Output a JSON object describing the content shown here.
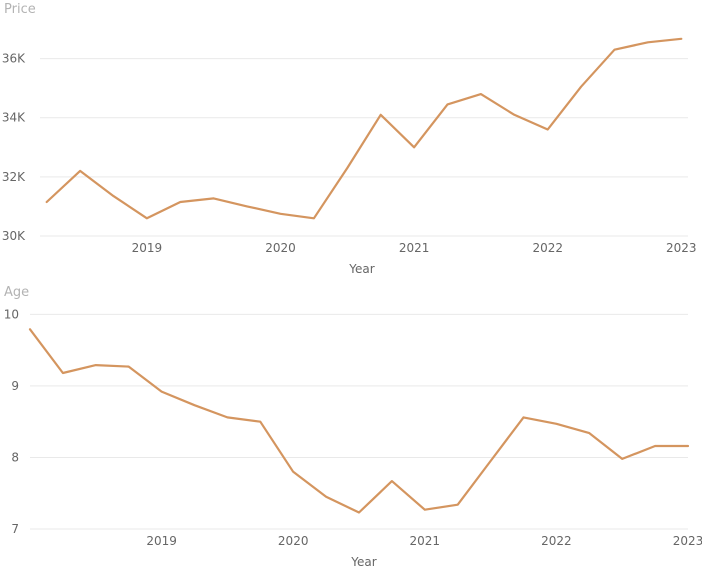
{
  "colors": {
    "series": "#d4955f",
    "grid": "#e9e9e9",
    "label": "#666666",
    "title": "#b3b3b3"
  },
  "chart_data": [
    {
      "type": "line",
      "title": "",
      "ylabel": "Price",
      "xlabel": "Year",
      "ylim": [
        30000,
        37000
      ],
      "xlim": [
        2018.2,
        2023.05
      ],
      "yticks": [
        30000,
        32000,
        34000,
        36000
      ],
      "ytick_labels": [
        "30K",
        "32K",
        "34K",
        "36K"
      ],
      "xticks": [
        2019,
        2020,
        2021,
        2022,
        2023
      ],
      "xtick_labels": [
        "2019",
        "2020",
        "2021",
        "2022",
        "2023"
      ],
      "grid": true,
      "series": [
        {
          "name": "Price",
          "x": [
            2018.25,
            2018.5,
            2018.75,
            2019.0,
            2019.25,
            2019.5,
            2019.75,
            2020.0,
            2020.25,
            2020.5,
            2020.75,
            2021.0,
            2021.25,
            2021.5,
            2021.75,
            2022.0,
            2022.25,
            2022.5,
            2022.75,
            2023.0
          ],
          "values": [
            31150,
            32200,
            31350,
            30600,
            31150,
            31270,
            31000,
            30750,
            30600,
            32300,
            34100,
            33000,
            34450,
            34800,
            34100,
            33600,
            35050,
            36300,
            36550,
            36670
          ]
        }
      ]
    },
    {
      "type": "line",
      "title": "",
      "ylabel": "Age",
      "xlabel": "Year",
      "ylim": [
        7,
        10.2
      ],
      "xlim": [
        2018.0,
        2023.0
      ],
      "yticks": [
        7,
        8,
        9,
        10
      ],
      "ytick_labels": [
        "7",
        "8",
        "9",
        "10"
      ],
      "xticks": [
        2019,
        2020,
        2021,
        2022,
        2023
      ],
      "xtick_labels": [
        "2019",
        "2020",
        "2021",
        "2022",
        "2023"
      ],
      "grid": true,
      "series": [
        {
          "name": "Age",
          "x": [
            2018.0,
            2018.25,
            2018.5,
            2018.75,
            2019.0,
            2019.25,
            2019.5,
            2019.75,
            2020.0,
            2020.25,
            2020.5,
            2020.75,
            2021.0,
            2021.25,
            2021.5,
            2021.75,
            2022.0,
            2022.25,
            2022.5,
            2022.75,
            2023.0
          ],
          "values": [
            9.79,
            9.18,
            9.29,
            9.27,
            8.92,
            8.73,
            8.56,
            8.5,
            7.8,
            7.45,
            7.23,
            7.67,
            7.27,
            7.34,
            7.95,
            8.56,
            8.47,
            8.34,
            7.98,
            8.16,
            8.16
          ]
        }
      ]
    }
  ]
}
